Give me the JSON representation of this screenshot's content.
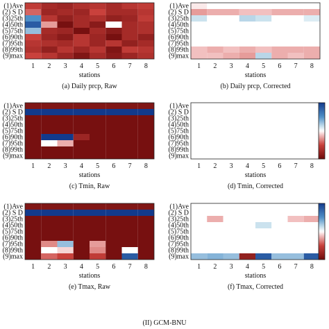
{
  "figure_caption": "(II) GCM-BNU",
  "colors": {
    "dark_red": "#6e0b0b",
    "red": "#c9413c",
    "light_red": "#f2c0c0",
    "white": "#ffffff",
    "light_blue": "#cbe2ee",
    "blue": "#4f8fc7",
    "dark_blue": "#123a8c"
  },
  "chart_data": [
    {
      "type": "heatmap",
      "caption": "(a) Daily prcp, Raw",
      "xlabel": "stations",
      "x_ticks": [
        "1",
        "2",
        "3",
        "4",
        "5",
        "6",
        "7",
        "8"
      ],
      "y_ticks": [
        "(1)Ave",
        "(2) S D",
        "(3)25th",
        "(4)50th",
        "(5)75th",
        "(6)90th",
        "(7)95th",
        "(8)99th",
        "(9)max"
      ],
      "values": [
        [
          0.55,
          0.7,
          0.75,
          0.65,
          0.6,
          0.7,
          0.6,
          0.55
        ],
        [
          0.4,
          0.75,
          0.7,
          0.75,
          0.5,
          0.7,
          0.7,
          0.6
        ],
        [
          -0.5,
          0.6,
          0.8,
          0.7,
          0.65,
          0.8,
          0.75,
          0.55
        ],
        [
          -0.8,
          0.25,
          0.95,
          0.7,
          0.85,
          0.0,
          0.7,
          0.65
        ],
        [
          -0.3,
          0.7,
          0.75,
          0.95,
          0.7,
          0.85,
          0.7,
          0.65
        ],
        [
          0.5,
          0.75,
          0.85,
          0.6,
          0.75,
          0.95,
          0.7,
          0.8
        ],
        [
          0.6,
          0.65,
          0.7,
          0.6,
          0.75,
          0.6,
          0.8,
          0.7
        ],
        [
          0.65,
          0.8,
          0.6,
          0.75,
          0.6,
          0.9,
          0.55,
          0.6
        ],
        [
          0.5,
          0.6,
          0.75,
          0.9,
          0.7,
          0.85,
          0.75,
          0.65
        ]
      ]
    },
    {
      "type": "heatmap",
      "caption": "(b) Daily prcp, Corrected",
      "xlabel": "stations",
      "x_ticks": [
        "1",
        "2",
        "3",
        "4",
        "5",
        "6",
        "7",
        "8"
      ],
      "y_ticks": [
        "(1)Ave",
        "(2) S D",
        "(3)25th",
        "(4)50th",
        "(5)75th",
        "(6)90th",
        "(7)95th",
        "(8)99th",
        "(9)max"
      ],
      "values": [
        [
          0.05,
          0,
          0,
          0,
          0,
          0,
          0,
          0
        ],
        [
          0.25,
          0.2,
          0.2,
          0.15,
          0.15,
          0.2,
          0.2,
          0.2
        ],
        [
          -0.15,
          0,
          0,
          -0.2,
          -0.15,
          0,
          0,
          -0.1
        ],
        [
          0,
          0,
          0,
          0,
          0,
          0,
          0,
          0
        ],
        [
          0,
          0,
          0,
          0,
          0,
          0,
          0,
          0
        ],
        [
          0,
          0,
          0,
          0,
          0,
          0,
          0,
          0
        ],
        [
          0,
          0,
          0,
          0,
          0,
          0,
          0,
          0
        ],
        [
          0.15,
          0.2,
          0.15,
          0.2,
          0.15,
          0.2,
          0.2,
          0.2
        ],
        [
          0.15,
          0.15,
          0.2,
          0.25,
          -0.2,
          0.2,
          0.15,
          0.2
        ]
      ]
    },
    {
      "type": "heatmap",
      "caption": "(c) Tmin, Raw",
      "xlabel": "stations",
      "x_ticks": [
        "1",
        "2",
        "3",
        "4",
        "5",
        "6",
        "7",
        "8"
      ],
      "y_ticks": [
        "(1)Ave",
        "(2) S D",
        "(3)25th",
        "(4)50th",
        "(5)75th",
        "(6)90th",
        "(7)95th",
        "(8)99th",
        "(9)max"
      ],
      "values": [
        [
          0.9,
          0.9,
          0.9,
          0.9,
          0.9,
          0.9,
          0.9,
          0.9
        ],
        [
          -1,
          -1,
          -1,
          -1,
          -1,
          -1,
          -1,
          -1
        ],
        [
          0.95,
          0.95,
          0.95,
          0.95,
          0.95,
          0.95,
          0.95,
          0.95
        ],
        [
          0.95,
          0.95,
          0.95,
          0.95,
          0.95,
          0.95,
          0.95,
          0.95
        ],
        [
          0.95,
          0.95,
          0.95,
          0.95,
          0.95,
          0.95,
          0.95,
          0.95
        ],
        [
          0.95,
          -1,
          -1,
          0.75,
          0.95,
          0.95,
          0.95,
          0.95
        ],
        [
          0.95,
          0,
          0.2,
          0.95,
          0.95,
          0.95,
          0.95,
          0.95
        ],
        [
          0.95,
          0.95,
          0.95,
          0.95,
          0.95,
          0.95,
          0.95,
          0.95
        ],
        [
          0.95,
          0.95,
          0.95,
          0.95,
          0.95,
          0.95,
          0.95,
          0.95
        ]
      ]
    },
    {
      "type": "heatmap",
      "caption": "(d) Tmin, Corrected",
      "xlabel": "stations",
      "x_ticks": [
        "1",
        "2",
        "3",
        "4",
        "5",
        "6",
        "7",
        "8"
      ],
      "y_ticks": [
        "(1)Ave",
        "(2) S D",
        "(3)25th",
        "(4)50th",
        "(5)75th",
        "(6)90th",
        "(7)95th",
        "(8)99th",
        "(9)max"
      ],
      "values": [
        [
          0,
          0,
          0,
          0,
          0,
          0,
          0,
          0
        ],
        [
          0,
          0,
          0,
          0,
          0,
          0,
          0,
          0
        ],
        [
          0,
          0,
          0,
          0,
          0,
          0,
          0,
          0
        ],
        [
          0,
          0,
          0,
          0,
          0,
          0,
          0,
          0
        ],
        [
          0,
          0,
          0,
          0,
          0,
          0,
          0,
          0
        ],
        [
          0,
          0,
          0,
          0,
          0,
          0,
          0,
          0
        ],
        [
          0,
          0,
          0,
          0,
          0,
          0,
          0,
          0
        ],
        [
          0,
          0,
          0,
          0,
          0,
          0,
          0,
          0
        ],
        [
          0,
          0,
          0,
          0,
          0,
          0,
          0,
          0
        ]
      ]
    },
    {
      "type": "heatmap",
      "caption": "(e) Tmax, Raw",
      "xlabel": "stations",
      "x_ticks": [
        "1",
        "2",
        "3",
        "4",
        "5",
        "6",
        "7",
        "8"
      ],
      "y_ticks": [
        "(1)Ave",
        "(2) S D",
        "(3)25th",
        "(4)50th",
        "(5)75th",
        "(6)90th",
        "(7)95th",
        "(8)99th",
        "(9)max"
      ],
      "values": [
        [
          0.9,
          0.9,
          0.9,
          0.9,
          0.9,
          0.9,
          0.9,
          0.9
        ],
        [
          -1,
          -1,
          -1,
          -1,
          -1,
          -1,
          -1,
          -1
        ],
        [
          0.95,
          0.95,
          0.95,
          0.95,
          0.95,
          0.95,
          0.95,
          0.95
        ],
        [
          0.95,
          0.95,
          0.95,
          0.95,
          0.95,
          0.95,
          0.95,
          0.95
        ],
        [
          0.95,
          0.95,
          0.95,
          0.95,
          0.95,
          0.95,
          0.95,
          0.95
        ],
        [
          0.95,
          0.95,
          0.95,
          0.95,
          0.95,
          0.95,
          0.95,
          0.95
        ],
        [
          0.95,
          0.3,
          -0.3,
          0.95,
          0.25,
          0.95,
          0.95,
          0.95
        ],
        [
          0.95,
          0,
          0.1,
          0.95,
          0.3,
          0.95,
          0,
          0.95
        ],
        [
          0.95,
          0.4,
          0.5,
          0.95,
          0.55,
          0.95,
          -0.8,
          0.95
        ]
      ]
    },
    {
      "type": "heatmap",
      "caption": "(f) Tmax, Corrected",
      "xlabel": "stations",
      "x_ticks": [
        "1",
        "2",
        "3",
        "4",
        "5",
        "6",
        "7",
        "8"
      ],
      "y_ticks": [
        "(1)Ave",
        "(2) S D",
        "(3)25th",
        "(4)50th",
        "(5)75th",
        "(6)90th",
        "(7)95th",
        "(8)99th",
        "(9)max"
      ],
      "values": [
        [
          0,
          0,
          0,
          0,
          0,
          0,
          0,
          0
        ],
        [
          0,
          0,
          0,
          0,
          0,
          0,
          0,
          0
        ],
        [
          0,
          0.2,
          0,
          0,
          0,
          0,
          0.15,
          0.2
        ],
        [
          0,
          0,
          0,
          0,
          -0.15,
          0,
          0,
          0
        ],
        [
          0,
          0,
          0,
          0,
          0,
          0,
          0,
          0
        ],
        [
          0,
          0,
          0,
          0,
          0,
          0,
          0,
          0
        ],
        [
          0,
          0,
          0,
          0,
          0,
          0,
          0,
          0
        ],
        [
          0,
          0,
          0,
          0,
          0,
          0,
          0,
          0
        ],
        [
          -0.3,
          -0.35,
          -0.3,
          0.8,
          -0.8,
          -0.3,
          -0.3,
          -0.8
        ]
      ]
    }
  ]
}
